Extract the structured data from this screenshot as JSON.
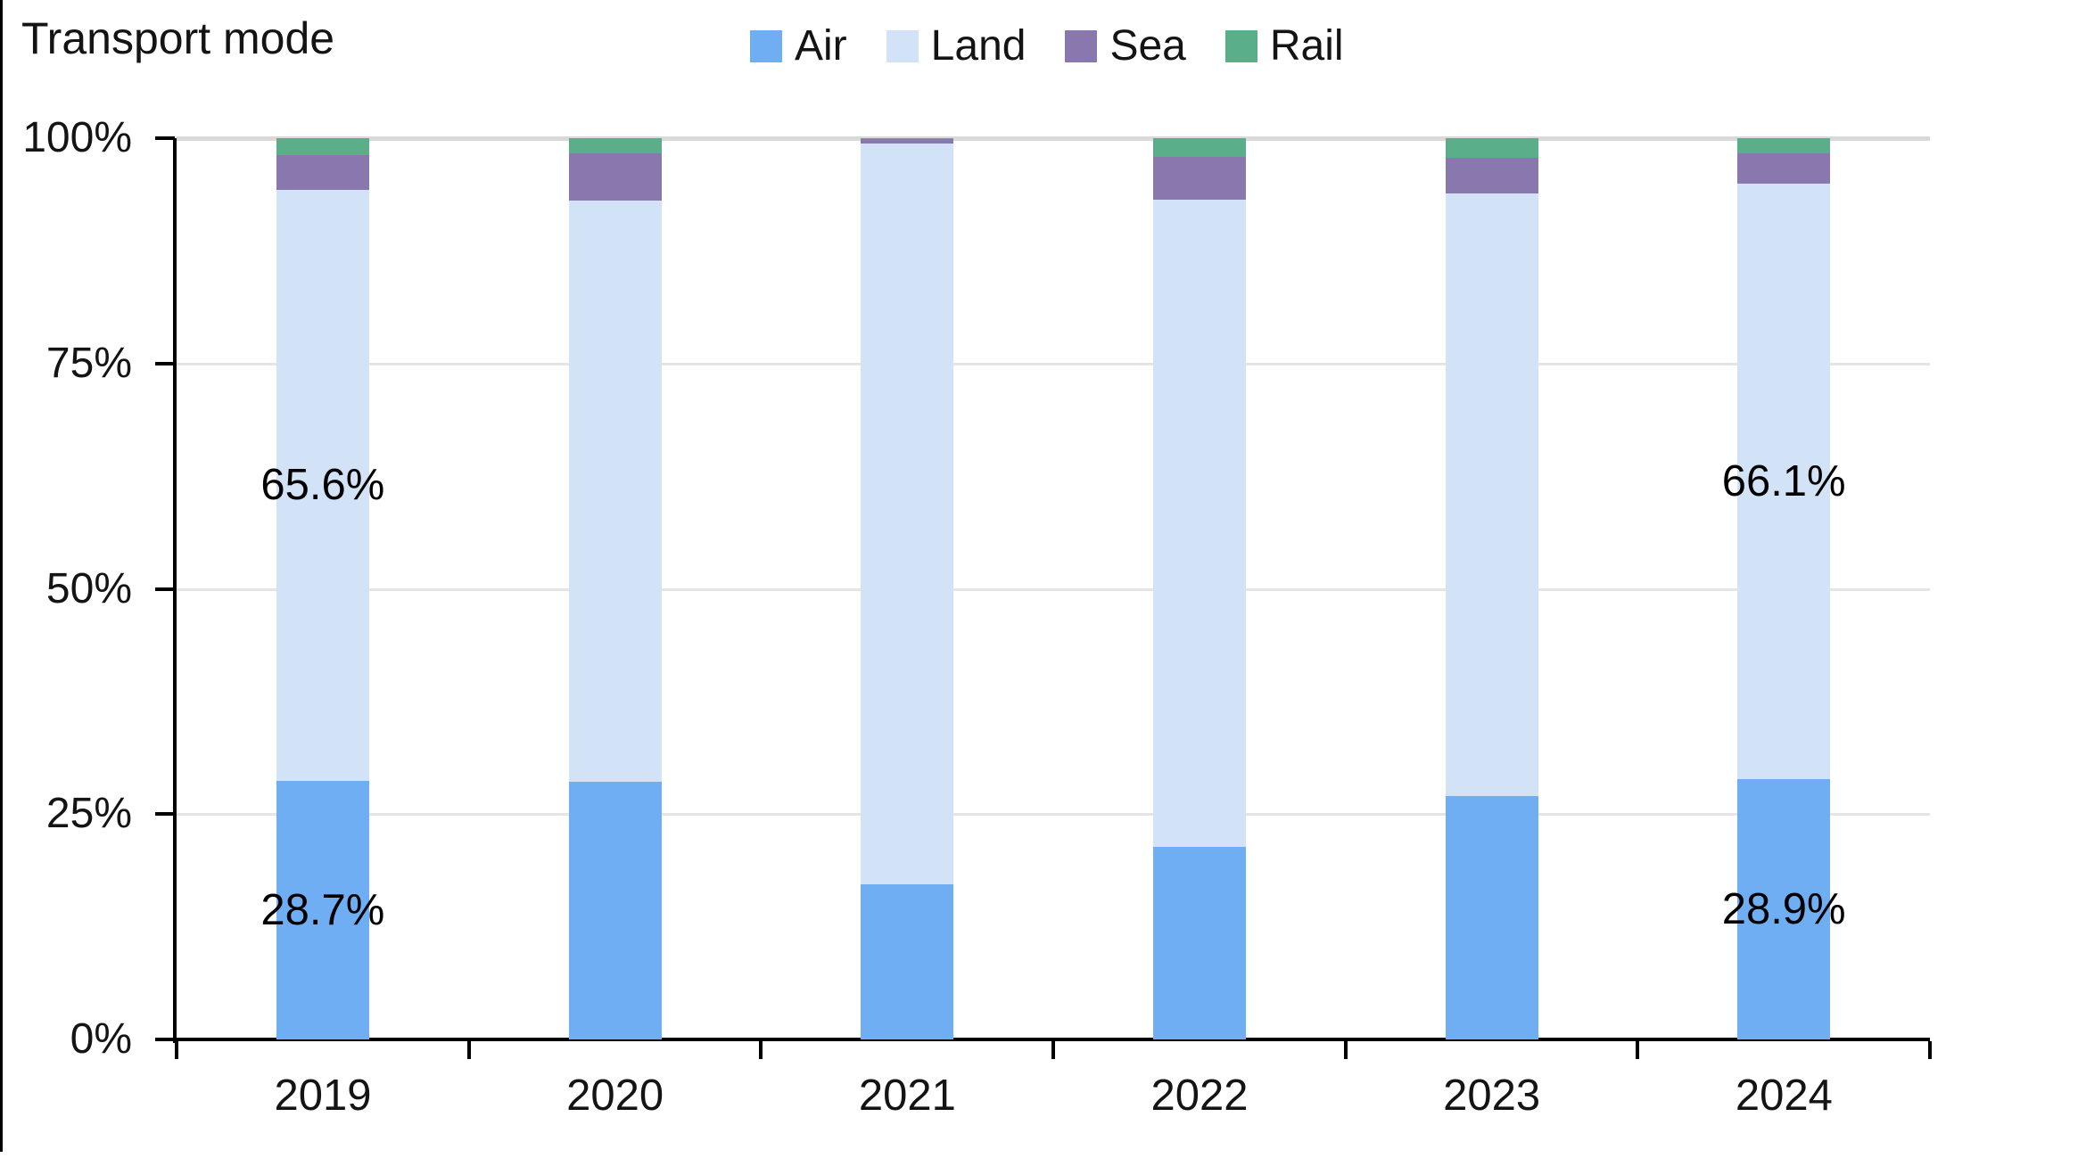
{
  "title": "Transport mode",
  "colors": {
    "air": "#6FAEF2",
    "land": "#D2E3F8",
    "sea": "#8878AE",
    "rail": "#5AAF8A",
    "grid": "#E5E5E5",
    "grid_top": "#D9D9D9",
    "axis": "#000000",
    "text": "#141414"
  },
  "chart_data": {
    "type": "bar",
    "stacked": true,
    "orientation": "vertical",
    "title": "Transport mode",
    "categories": [
      "2019",
      "2020",
      "2021",
      "2022",
      "2023",
      "2024"
    ],
    "series": [
      {
        "name": "Air",
        "color_key": "air",
        "values": [
          28.7,
          28.6,
          17.2,
          21.4,
          27.0,
          28.9
        ]
      },
      {
        "name": "Land",
        "color_key": "land",
        "values": [
          65.6,
          64.5,
          82.2,
          71.8,
          66.9,
          66.1
        ]
      },
      {
        "name": "Sea",
        "color_key": "sea",
        "values": [
          3.8,
          5.2,
          0.5,
          4.7,
          3.9,
          3.3
        ]
      },
      {
        "name": "Rail",
        "color_key": "rail",
        "values": [
          1.9,
          1.7,
          0.1,
          2.1,
          2.2,
          1.7
        ]
      }
    ],
    "stack_order_bottom_to_top": [
      "Air",
      "Land",
      "Sea",
      "Rail"
    ],
    "data_labels": [
      {
        "category": "2019",
        "series": "Land",
        "text": "65.6%"
      },
      {
        "category": "2019",
        "series": "Air",
        "text": "28.7%"
      },
      {
        "category": "2024",
        "series": "Land",
        "text": "66.1%"
      },
      {
        "category": "2024",
        "series": "Air",
        "text": "28.9%"
      }
    ],
    "y_axis": {
      "ticks": [
        "0%",
        "25%",
        "50%",
        "75%",
        "100%"
      ],
      "tick_values": [
        0,
        25,
        50,
        75,
        100
      ],
      "ylim": [
        0,
        100
      ],
      "grid": true
    },
    "legend": {
      "position": "top",
      "entries": [
        "Air",
        "Land",
        "Sea",
        "Rail"
      ]
    }
  }
}
